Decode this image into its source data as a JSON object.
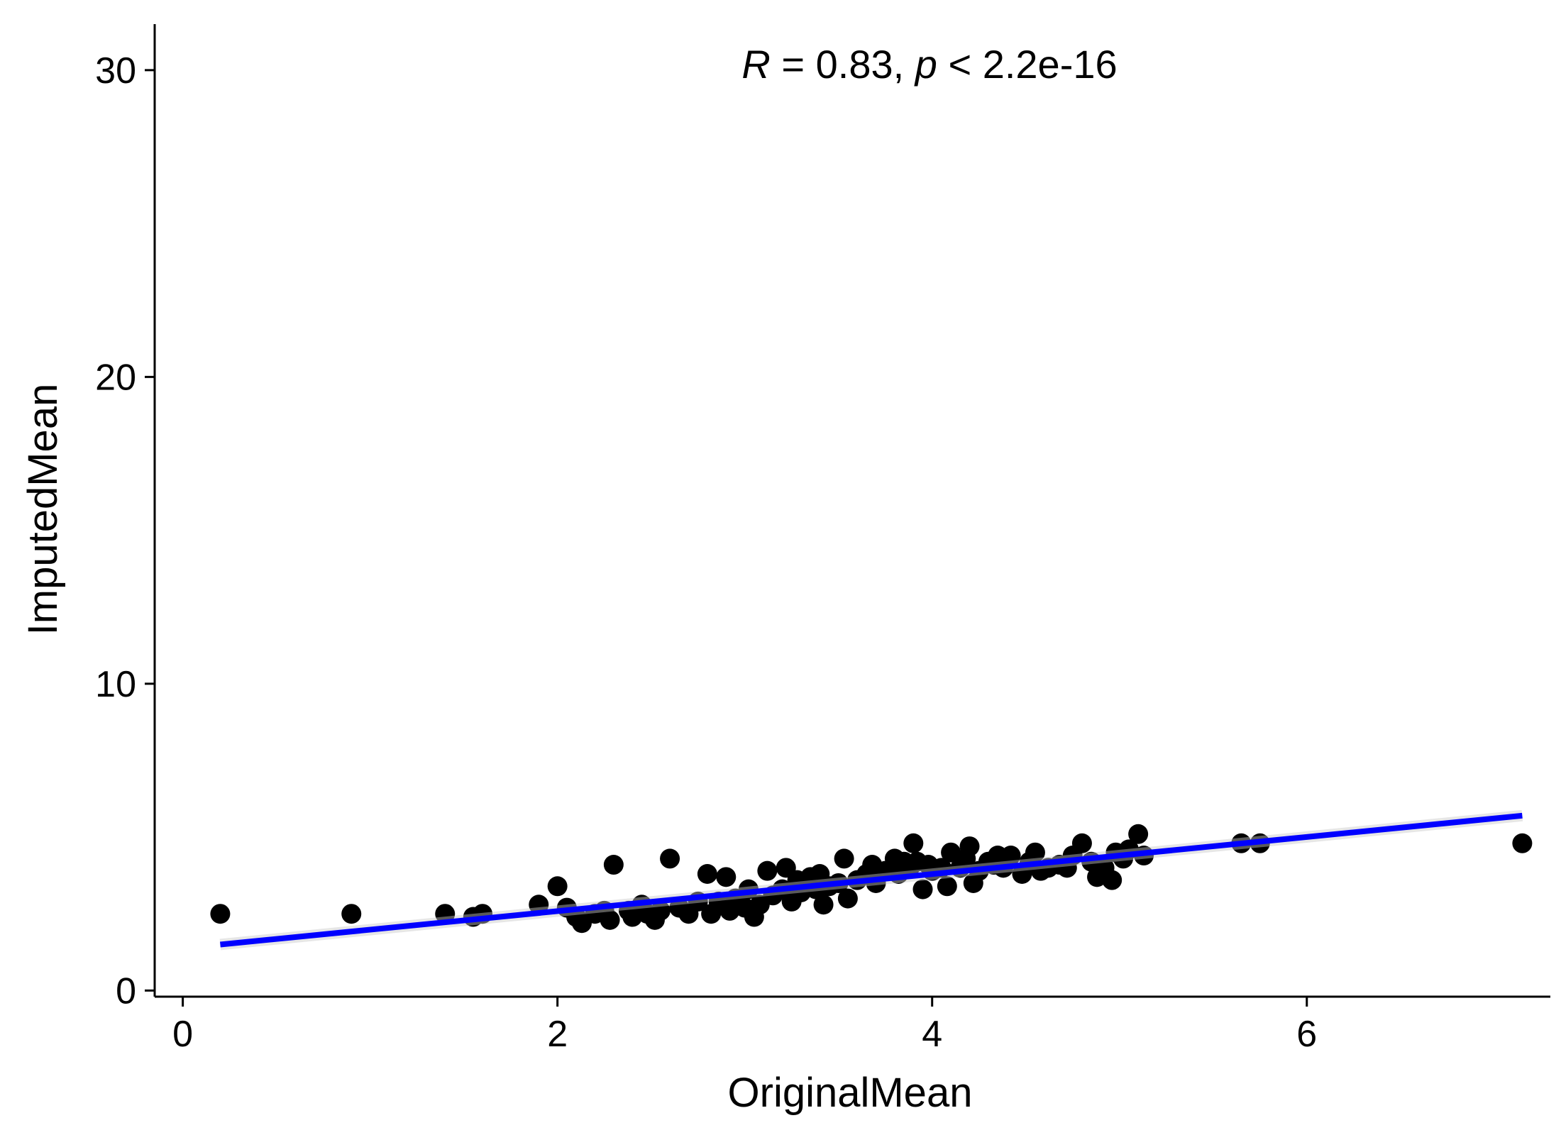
{
  "chart_data": {
    "type": "scatter",
    "title": "",
    "xlabel": "OriginalMean",
    "ylabel": "ImputedMean",
    "xlim": [
      -0.15,
      7.3
    ],
    "ylim": [
      -0.2,
      31.5
    ],
    "x_ticks": [
      {
        "value": 0,
        "label": "0"
      },
      {
        "value": 2,
        "label": "2"
      },
      {
        "value": 4,
        "label": "4"
      },
      {
        "value": 6,
        "label": "6"
      }
    ],
    "y_ticks": [
      {
        "value": 0,
        "label": "0"
      },
      {
        "value": 10,
        "label": "10"
      },
      {
        "value": 20,
        "label": "20"
      },
      {
        "value": 30,
        "label": "30"
      }
    ],
    "grid": false,
    "annotation": {
      "r_symbol": "R",
      "r_text": " = 0.83, ",
      "p_symbol": "p",
      "p_text": " < 2.2e-16"
    },
    "point_color": "#000000",
    "line_color": "#0000ff",
    "regression_line": {
      "x": [
        0.2,
        7.15
      ],
      "y": [
        1.5,
        5.7
      ]
    },
    "points": [
      [
        0.2,
        2.5
      ],
      [
        0.9,
        2.5
      ],
      [
        1.4,
        2.5
      ],
      [
        1.55,
        2.4
      ],
      [
        1.6,
        2.5
      ],
      [
        1.9,
        2.8
      ],
      [
        2.0,
        3.4
      ],
      [
        2.05,
        2.7
      ],
      [
        2.1,
        2.4
      ],
      [
        2.13,
        2.2
      ],
      [
        2.2,
        2.5
      ],
      [
        2.25,
        2.6
      ],
      [
        2.28,
        2.3
      ],
      [
        2.3,
        4.1
      ],
      [
        2.38,
        2.6
      ],
      [
        2.4,
        2.4
      ],
      [
        2.45,
        2.8
      ],
      [
        2.48,
        2.5
      ],
      [
        2.52,
        2.3
      ],
      [
        2.55,
        2.6
      ],
      [
        2.6,
        4.3
      ],
      [
        2.65,
        2.7
      ],
      [
        2.7,
        2.5
      ],
      [
        2.75,
        2.9
      ],
      [
        2.8,
        3.8
      ],
      [
        2.82,
        2.5
      ],
      [
        2.86,
        2.9
      ],
      [
        2.9,
        3.7
      ],
      [
        2.92,
        2.6
      ],
      [
        2.95,
        3.0
      ],
      [
        3.0,
        2.7
      ],
      [
        3.02,
        3.3
      ],
      [
        3.05,
        2.4
      ],
      [
        3.08,
        2.8
      ],
      [
        3.12,
        3.9
      ],
      [
        3.15,
        3.1
      ],
      [
        3.2,
        3.3
      ],
      [
        3.22,
        4.0
      ],
      [
        3.25,
        2.9
      ],
      [
        3.28,
        3.6
      ],
      [
        3.3,
        3.2
      ],
      [
        3.35,
        3.7
      ],
      [
        3.38,
        3.3
      ],
      [
        3.4,
        3.8
      ],
      [
        3.42,
        2.8
      ],
      [
        3.45,
        3.4
      ],
      [
        3.5,
        3.5
      ],
      [
        3.53,
        4.3
      ],
      [
        3.55,
        3.0
      ],
      [
        3.6,
        3.6
      ],
      [
        3.65,
        3.8
      ],
      [
        3.68,
        4.1
      ],
      [
        3.7,
        3.5
      ],
      [
        3.75,
        3.9
      ],
      [
        3.8,
        4.3
      ],
      [
        3.82,
        3.8
      ],
      [
        3.85,
        4.2
      ],
      [
        3.88,
        4.0
      ],
      [
        3.9,
        4.8
      ],
      [
        3.92,
        4.2
      ],
      [
        3.95,
        3.3
      ],
      [
        3.98,
        4.1
      ],
      [
        4.0,
        3.9
      ],
      [
        4.05,
        4.0
      ],
      [
        4.08,
        3.4
      ],
      [
        4.1,
        4.5
      ],
      [
        4.15,
        4.0
      ],
      [
        4.18,
        4.3
      ],
      [
        4.2,
        4.7
      ],
      [
        4.22,
        3.5
      ],
      [
        4.25,
        3.9
      ],
      [
        4.3,
        4.2
      ],
      [
        4.33,
        4.1
      ],
      [
        4.35,
        4.4
      ],
      [
        4.38,
        4.0
      ],
      [
        4.42,
        4.4
      ],
      [
        4.48,
        3.8
      ],
      [
        4.52,
        4.2
      ],
      [
        4.55,
        4.5
      ],
      [
        4.58,
        3.9
      ],
      [
        4.62,
        4.0
      ],
      [
        4.68,
        4.1
      ],
      [
        4.72,
        4.0
      ],
      [
        4.75,
        4.4
      ],
      [
        4.8,
        4.8
      ],
      [
        4.85,
        4.2
      ],
      [
        4.88,
        3.7
      ],
      [
        4.92,
        4.0
      ],
      [
        4.96,
        3.6
      ],
      [
        4.98,
        4.5
      ],
      [
        5.02,
        4.3
      ],
      [
        5.05,
        4.6
      ],
      [
        5.1,
        5.1
      ],
      [
        5.13,
        4.4
      ],
      [
        5.65,
        4.8
      ],
      [
        5.75,
        4.8
      ],
      [
        7.15,
        4.8
      ]
    ]
  }
}
